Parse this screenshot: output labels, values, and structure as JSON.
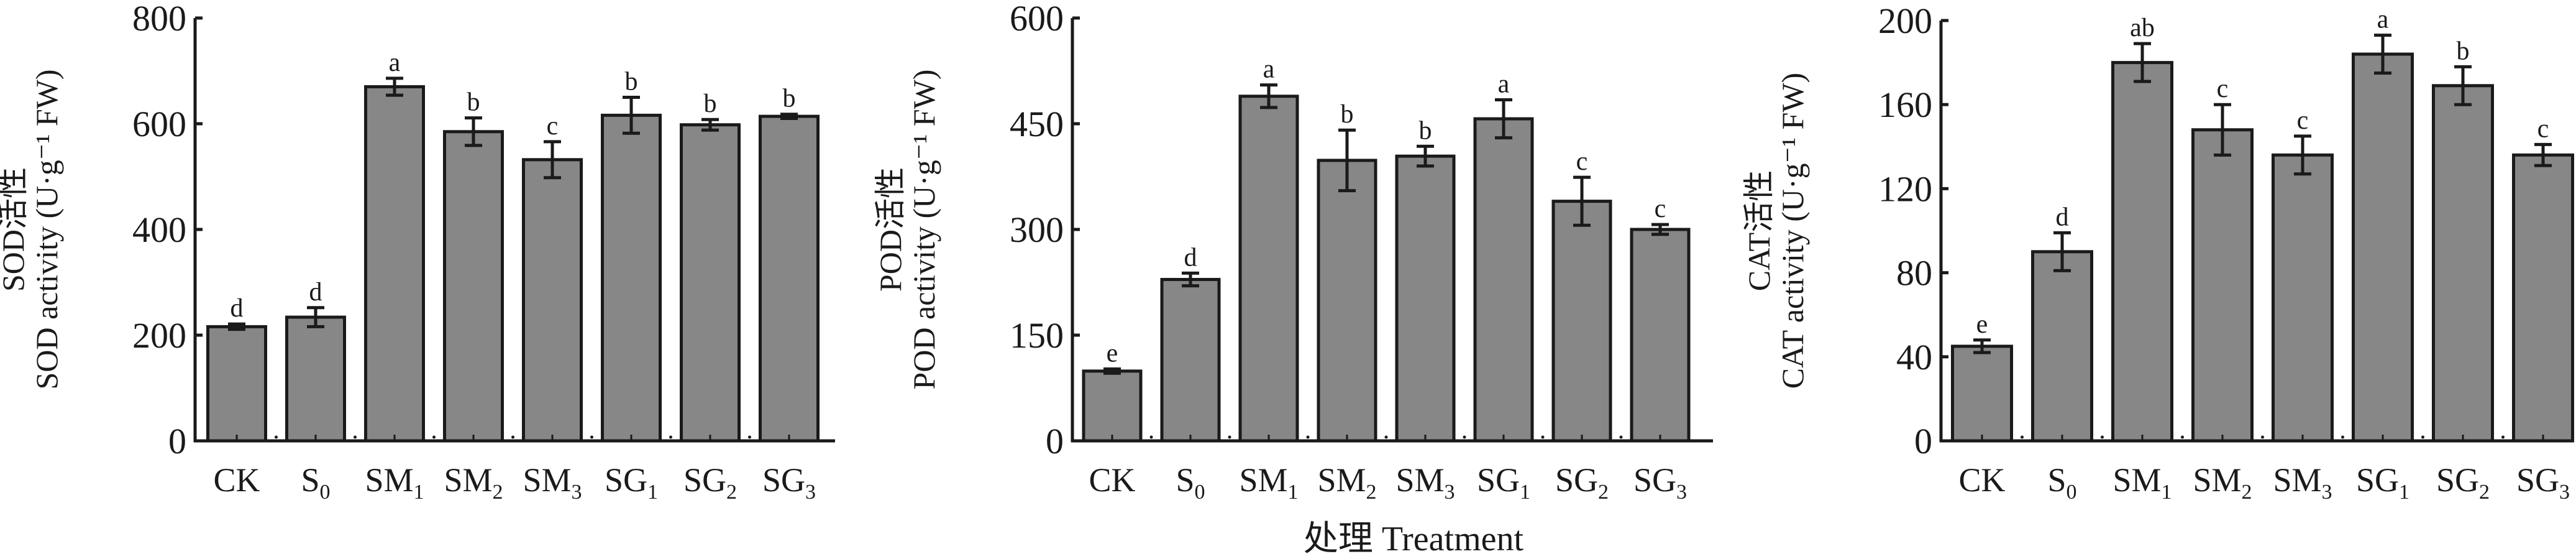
{
  "x_axis_title": "处理 Treatment",
  "chart_data": [
    {
      "type": "bar",
      "ylabel_cn": "SOD活性",
      "ylabel_en": "SOD activity (U·g⁻¹ FW)",
      "categories": [
        "CK",
        "S0",
        "SM1",
        "SM2",
        "SM3",
        "SG1",
        "SG2",
        "SG3"
      ],
      "values": [
        216,
        234,
        670,
        585,
        532,
        616,
        598,
        614
      ],
      "errors": [
        5,
        18,
        16,
        26,
        34,
        34,
        10,
        4
      ],
      "significance": [
        "d",
        "d",
        "a",
        "b",
        "c",
        "b",
        "b",
        "b"
      ],
      "yticks": [
        0,
        200,
        400,
        600,
        800
      ],
      "ylim": [
        0,
        800
      ],
      "bar_color": "#878787",
      "grid": false
    },
    {
      "type": "bar",
      "ylabel_cn": "POD活性",
      "ylabel_en": "POD activity (U·g⁻¹ FW)",
      "categories": [
        "CK",
        "S0",
        "SM1",
        "SM2",
        "SM3",
        "SG1",
        "SG2",
        "SG3"
      ],
      "values": [
        99,
        229,
        489,
        398,
        404,
        457,
        340,
        300
      ],
      "errors": [
        3,
        9,
        16,
        43,
        14,
        27,
        34,
        7
      ],
      "significance": [
        "e",
        "d",
        "a",
        "b",
        "b",
        "a",
        "c",
        "c"
      ],
      "yticks": [
        0,
        150,
        300,
        450,
        600
      ],
      "ylim": [
        0,
        600
      ],
      "bar_color": "#878787",
      "grid": false
    },
    {
      "type": "bar",
      "ylabel_cn": "CAT活性",
      "ylabel_en": "CAT activity (U·g⁻¹ FW)",
      "categories": [
        "CK",
        "S0",
        "SM1",
        "SM2",
        "SM3",
        "SG1",
        "SG2",
        "SG3"
      ],
      "values": [
        45,
        90,
        180,
        148,
        136,
        184,
        169,
        136
      ],
      "errors": [
        3,
        9,
        9,
        12,
        9,
        9,
        9,
        5
      ],
      "significance": [
        "e",
        "d",
        "ab",
        "c",
        "c",
        "a",
        "b",
        "c"
      ],
      "yticks": [
        0,
        40,
        80,
        120,
        160,
        200
      ],
      "ylim": [
        0,
        200
      ],
      "bar_color": "#878787",
      "grid": false
    }
  ]
}
